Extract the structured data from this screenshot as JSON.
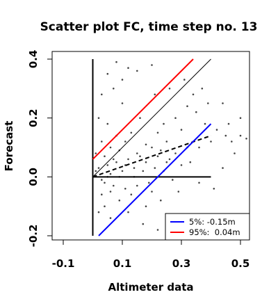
{
  "chart_data": {
    "type": "scatter",
    "title": "Scatter plot FC, time step no. 13",
    "xlabel": "Altimeter data",
    "ylabel": "Forecast",
    "xlim": [
      -0.1,
      0.55
    ],
    "ylim": [
      -0.2,
      0.4
    ],
    "xticks": [
      -0.1,
      0.1,
      0.3,
      0.5
    ],
    "xtick_labels": [
      "-0.1",
      "0.1",
      "0.3",
      "0.5"
    ],
    "yticks": [
      -0.2,
      0.0,
      0.2,
      0.4
    ],
    "ytick_labels": [
      "-0.2",
      "0.0",
      "0.2",
      "0.4"
    ],
    "grid": false,
    "legend_position": "bottom-right",
    "colors": {
      "points": "#444444",
      "blue_line": "#0000ff",
      "red_line": "#ff0000",
      "black": "#000000"
    },
    "reference_lines": [
      {
        "name": "1:1 line",
        "style": "solid-thin",
        "color": "#000000",
        "x": [
          0.0,
          0.4
        ],
        "y": [
          0.0,
          0.4
        ]
      },
      {
        "name": "regression",
        "style": "dashed",
        "color": "#000000",
        "x": [
          0.0,
          0.4
        ],
        "y": [
          0.0,
          0.14
        ]
      },
      {
        "name": "zero",
        "style": "solid",
        "color": "#000000",
        "x": [
          0.0,
          0.4
        ],
        "y": [
          0.0,
          0.0
        ]
      },
      {
        "name": "vertical zero",
        "style": "solid",
        "color": "#000000",
        "x": [
          0.0,
          0.0
        ],
        "y": [
          -0.2,
          0.4
        ]
      }
    ],
    "series": [
      {
        "name": "5%: -0.15m",
        "type": "line",
        "color": "#0000ff",
        "x": [
          0.02,
          0.4
        ],
        "y": [
          -0.2,
          0.18
        ]
      },
      {
        "name": "95%:  0.04m",
        "type": "line",
        "color": "#ff0000",
        "x": [
          0.0,
          0.34
        ],
        "y": [
          0.06,
          0.4
        ]
      }
    ],
    "scatter_points": [
      [
        0.02,
        0.03
      ],
      [
        0.03,
        -0.01
      ],
      [
        0.01,
        0.02
      ],
      [
        0.05,
        0.04
      ],
      [
        0.04,
        -0.02
      ],
      [
        0.06,
        0.01
      ],
      [
        0.08,
        0.05
      ],
      [
        0.07,
        -0.03
      ],
      [
        0.1,
        0.02
      ],
      [
        0.12,
        0.06
      ],
      [
        0.11,
        -0.04
      ],
      [
        0.14,
        0.03
      ],
      [
        0.15,
        0.08
      ],
      [
        0.13,
        -0.06
      ],
      [
        0.18,
        0.05
      ],
      [
        0.2,
        0.1
      ],
      [
        0.19,
        -0.02
      ],
      [
        0.22,
        0.07
      ],
      [
        0.25,
        0.12
      ],
      [
        0.24,
        0.02
      ],
      [
        0.28,
        0.08
      ],
      [
        0.3,
        0.16
      ],
      [
        0.27,
        -0.01
      ],
      [
        0.32,
        0.1
      ],
      [
        0.35,
        0.22
      ],
      [
        0.33,
        0.05
      ],
      [
        0.38,
        0.18
      ],
      [
        0.4,
        0.12
      ],
      [
        0.36,
        -0.02
      ],
      [
        0.42,
        0.16
      ],
      [
        0.45,
        0.14
      ],
      [
        0.48,
        0.08
      ],
      [
        0.5,
        0.2
      ],
      [
        0.52,
        0.13
      ],
      [
        0.03,
        0.12
      ],
      [
        0.05,
        0.18
      ],
      [
        0.02,
        0.2
      ],
      [
        0.04,
        -0.1
      ],
      [
        0.06,
        -0.14
      ],
      [
        0.08,
        0.14
      ],
      [
        0.09,
        -0.08
      ],
      [
        0.1,
        0.25
      ],
      [
        0.12,
        -0.12
      ],
      [
        0.03,
        0.28
      ],
      [
        0.05,
        0.35
      ],
      [
        0.07,
        0.3
      ],
      [
        0.16,
        0.2
      ],
      [
        0.18,
        -0.1
      ],
      [
        0.21,
        0.28
      ],
      [
        0.23,
        -0.08
      ],
      [
        0.26,
        0.3
      ],
      [
        0.29,
        -0.05
      ],
      [
        0.31,
        0.33
      ],
      [
        0.34,
        0.12
      ],
      [
        0.37,
        0.3
      ],
      [
        0.39,
        0.25
      ],
      [
        0.41,
        -0.04
      ],
      [
        0.44,
        0.25
      ],
      [
        0.46,
        0.18
      ],
      [
        0.03,
        -0.06
      ],
      [
        0.01,
        0.08
      ],
      [
        0.02,
        -0.12
      ],
      [
        0.04,
        0.07
      ],
      [
        0.06,
        0.1
      ],
      [
        0.09,
        0.09
      ],
      [
        0.11,
        0.12
      ],
      [
        0.13,
        0.15
      ],
      [
        0.15,
        -0.03
      ],
      [
        0.17,
        0.02
      ],
      [
        0.2,
        -0.05
      ],
      [
        0.22,
        0.15
      ],
      [
        0.24,
        0.18
      ],
      [
        0.26,
        0.06
      ],
      [
        0.28,
        0.2
      ],
      [
        0.3,
        0.04
      ],
      [
        0.32,
        0.24
      ],
      [
        0.34,
        0.28
      ],
      [
        0.36,
        0.1
      ],
      [
        0.2,
        0.38
      ],
      [
        0.15,
        0.36
      ],
      [
        0.1,
        0.33
      ],
      [
        0.12,
        0.37
      ],
      [
        0.08,
        0.39
      ],
      [
        0.17,
        -0.16
      ],
      [
        0.22,
        -0.18
      ],
      [
        0.3,
        -0.19
      ],
      [
        0.44,
        0.03
      ],
      [
        0.47,
        0.12
      ],
      [
        0.5,
        0.14
      ],
      [
        0.06,
        -0.05
      ],
      [
        0.07,
        0.06
      ],
      [
        0.05,
        0.0
      ],
      [
        0.09,
        0.0
      ],
      [
        0.11,
        0.04
      ],
      [
        0.14,
        0.0
      ],
      [
        0.16,
        0.07
      ],
      [
        0.18,
        0.11
      ],
      [
        0.21,
        0.03
      ],
      [
        0.23,
        0.09
      ],
      [
        0.25,
        0.05
      ]
    ],
    "legend": [
      {
        "label": "5%: -0.15m",
        "color": "#0000ff"
      },
      {
        "label": "95%:  0.04m",
        "color": "#ff0000"
      }
    ]
  }
}
